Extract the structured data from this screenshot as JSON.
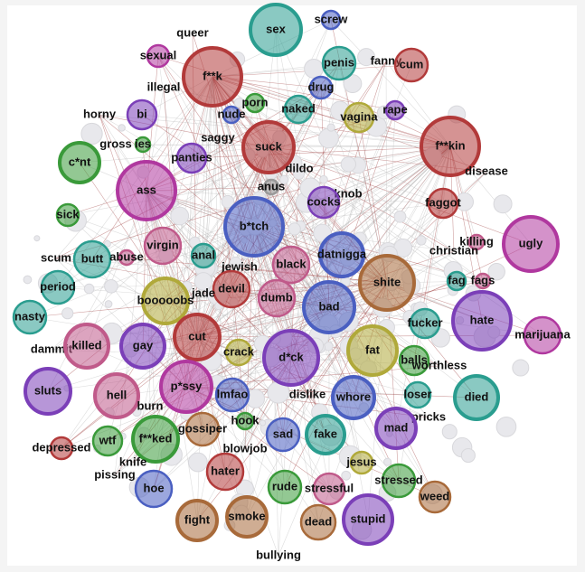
{
  "nodes": [
    {
      "label": "sex"
    },
    {
      "label": "screw"
    },
    {
      "label": "queer"
    },
    {
      "label": "sexual"
    },
    {
      "label": "f**k"
    },
    {
      "label": "penis"
    },
    {
      "label": "fanny"
    },
    {
      "label": "cum"
    },
    {
      "label": "illegal"
    },
    {
      "label": "drug"
    },
    {
      "label": "porn"
    },
    {
      "label": "naked"
    },
    {
      "label": "rape"
    },
    {
      "label": "horny"
    },
    {
      "label": "bi"
    },
    {
      "label": "nude"
    },
    {
      "label": "vagina"
    },
    {
      "label": "f**kin"
    },
    {
      "label": "saggy"
    },
    {
      "label": "gross"
    },
    {
      "label": "ies"
    },
    {
      "label": "suck"
    },
    {
      "label": "panties"
    },
    {
      "label": "c*nt"
    },
    {
      "label": "disease"
    },
    {
      "label": "dildo"
    },
    {
      "label": "ass"
    },
    {
      "label": "anus"
    },
    {
      "label": "knob"
    },
    {
      "label": "cocks"
    },
    {
      "label": "faggot"
    },
    {
      "label": "sick"
    },
    {
      "label": "b*tch"
    },
    {
      "label": "killing"
    },
    {
      "label": "christian"
    },
    {
      "label": "ugly"
    },
    {
      "label": "virgin"
    },
    {
      "label": "butt"
    },
    {
      "label": "scum"
    },
    {
      "label": "abuse"
    },
    {
      "label": "anal"
    },
    {
      "label": "datnigga"
    },
    {
      "label": "black"
    },
    {
      "label": "jewish"
    },
    {
      "label": "shite"
    },
    {
      "label": "fag"
    },
    {
      "label": "fags"
    },
    {
      "label": "period"
    },
    {
      "label": "devil"
    },
    {
      "label": "booooobs"
    },
    {
      "label": "jade"
    },
    {
      "label": "dumb"
    },
    {
      "label": "bad"
    },
    {
      "label": "hate"
    },
    {
      "label": "nasty"
    },
    {
      "label": "fucker"
    },
    {
      "label": "marijuana"
    },
    {
      "label": "dammit"
    },
    {
      "label": "killed"
    },
    {
      "label": "gay"
    },
    {
      "label": "cut"
    },
    {
      "label": "crack"
    },
    {
      "label": "d*ck"
    },
    {
      "label": "fat"
    },
    {
      "label": "balls"
    },
    {
      "label": "worthless"
    },
    {
      "label": "sluts"
    },
    {
      "label": "hell"
    },
    {
      "label": "p*ssy"
    },
    {
      "label": "lmfao"
    },
    {
      "label": "dislike"
    },
    {
      "label": "whore"
    },
    {
      "label": "loser"
    },
    {
      "label": "died"
    },
    {
      "label": "burn"
    },
    {
      "label": "hook"
    },
    {
      "label": "pricks"
    },
    {
      "label": "sad"
    },
    {
      "label": "fake"
    },
    {
      "label": "mad"
    },
    {
      "label": "wtf"
    },
    {
      "label": "f**ked"
    },
    {
      "label": "gossiper"
    },
    {
      "label": "depressed"
    },
    {
      "label": "blowjob"
    },
    {
      "label": "jesus"
    },
    {
      "label": "knife"
    },
    {
      "label": "pissing"
    },
    {
      "label": "hater"
    },
    {
      "label": "stressed"
    },
    {
      "label": "rude"
    },
    {
      "label": "stressful"
    },
    {
      "label": "hoe"
    },
    {
      "label": "weed"
    },
    {
      "label": "smoke"
    },
    {
      "label": "fight"
    },
    {
      "label": "dead"
    },
    {
      "label": "stupid"
    },
    {
      "label": "bullying"
    }
  ]
}
